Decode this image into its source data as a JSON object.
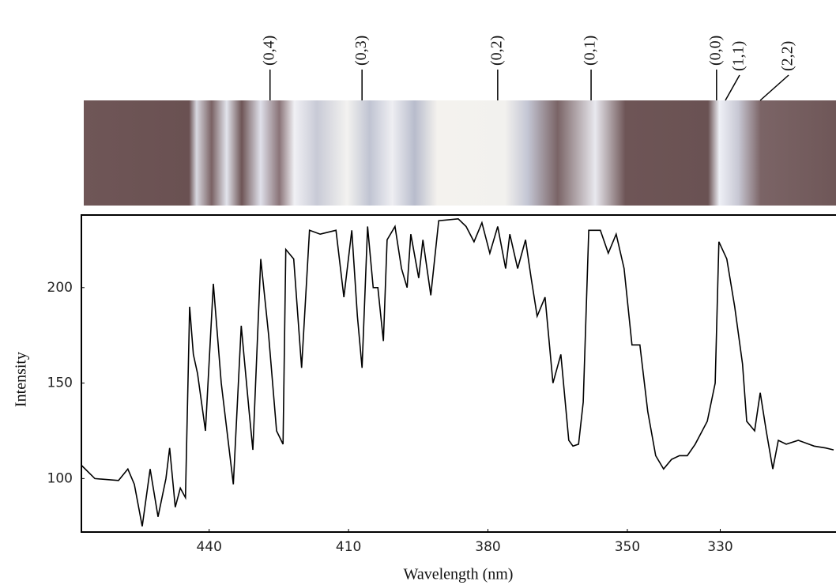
{
  "chart_data": {
    "type": "line",
    "x_label": "Wavelength (nm)",
    "y_label": "Intensity",
    "xlim": [
      467.5,
      305.6
    ],
    "ylim": [
      72,
      238
    ],
    "xticks": [
      440,
      410,
      380,
      350,
      330
    ],
    "yticks": [
      100,
      150,
      200
    ],
    "annotations": [
      {
        "text": "(0,4)",
        "x": 426.9
      },
      {
        "text": "(0,3)",
        "x": 407.1
      },
      {
        "text": "(0,2)",
        "x": 377.9
      },
      {
        "text": "(0,1)",
        "x": 357.8
      },
      {
        "text": "(0,0)",
        "x": 330.8
      },
      {
        "text": "(1,1)",
        "x": 328.9
      },
      {
        "text": "(2,2)",
        "x": 321.4
      }
    ],
    "series": [
      {
        "color": "#000000",
        "x": [
          467.5,
          464.6,
          459.5,
          457.5,
          456.1,
          454.4,
          452.7,
          451.0,
          449.3,
          448.5,
          447.3,
          446.2,
          445.1,
          444.2,
          443.4,
          442.5,
          440.8,
          439.1,
          437.4,
          434.8,
          433.1,
          431.4,
          430.6,
          428.9,
          427.2,
          425.5,
          424.1,
          423.5,
          421.8,
          420.1,
          418.4,
          416.1,
          412.7,
          411.0,
          409.3,
          408.1,
          407.1,
          405.9,
          404.7,
          403.7,
          402.5,
          401.7,
          400.0,
          398.6,
          397.4,
          396.6,
          394.9,
          394.0,
          392.3,
          390.6,
          386.4,
          384.7,
          383.0,
          381.3,
          379.6,
          377.9,
          376.2,
          375.3,
          373.6,
          371.9,
          370.7,
          369.4,
          367.7,
          366.0,
          364.3,
          362.6,
          361.7,
          360.5,
          359.5,
          358.3,
          355.8,
          354.1,
          352.4,
          350.7,
          349.0,
          347.3,
          345.6,
          343.9,
          342.2,
          340.5,
          338.8,
          337.1,
          335.4,
          332.8,
          331.1,
          330.3,
          328.6,
          326.9,
          325.2,
          324.3,
          322.6,
          321.4,
          320.1,
          318.7,
          317.5,
          315.8,
          313.2,
          309.8,
          307.3,
          305.6
        ],
        "values": [
          107,
          100,
          99,
          105,
          97,
          75,
          105,
          80,
          100,
          116,
          85,
          95,
          90,
          190,
          165,
          155,
          125,
          202,
          150,
          97,
          180,
          135,
          115,
          215,
          175,
          125,
          118,
          220,
          215,
          158,
          230,
          228,
          230,
          195,
          230,
          185,
          158,
          232,
          200,
          200,
          172,
          225,
          232,
          210,
          200,
          228,
          205,
          225,
          196,
          235,
          236,
          232,
          224,
          234,
          218,
          232,
          210,
          228,
          210,
          225,
          205,
          185,
          195,
          150,
          165,
          120,
          117,
          118,
          140,
          230,
          230,
          218,
          228,
          210,
          170,
          170,
          135,
          112,
          105,
          110,
          112,
          112,
          118,
          130,
          150,
          224,
          215,
          190,
          160,
          130,
          125,
          145,
          125,
          105,
          120,
          118,
          120,
          117,
          116,
          115
        ]
      }
    ]
  }
}
